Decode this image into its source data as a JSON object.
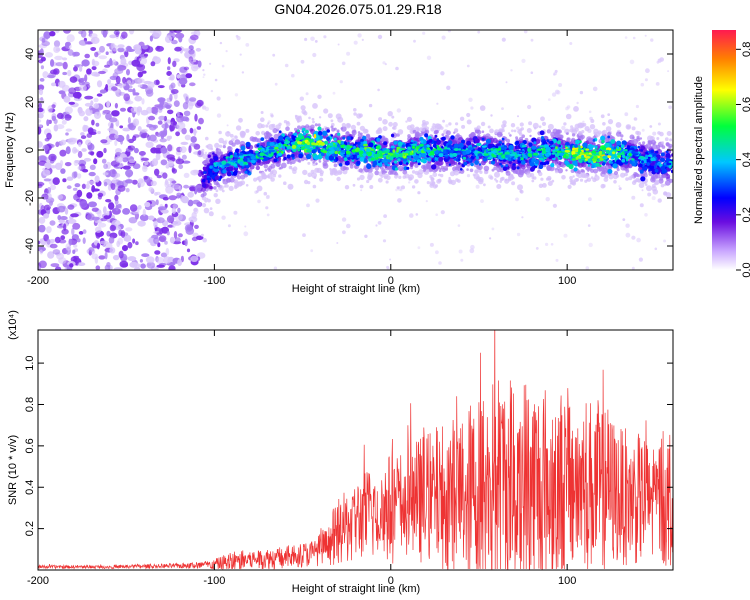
{
  "title": "GN04.2026.075.01.29.R18",
  "chart_data": [
    {
      "type": "heatmap",
      "xlabel": "Height of straight line (km)",
      "ylabel": "Frequency (Hz)",
      "xlim": [
        -200,
        160
      ],
      "ylim": [
        -50,
        50
      ],
      "xticks": [
        -200,
        -100,
        0,
        100
      ],
      "xtick_labels": [
        "-200",
        "-100",
        "0",
        "100"
      ],
      "yticks": [
        -40,
        -20,
        0,
        20,
        40
      ],
      "ytick_labels": [
        "-40",
        "-20",
        "0",
        "20",
        "40"
      ],
      "colorbar": {
        "label": "Normalized spectral amplitude",
        "range": [
          0,
          0.87
        ],
        "ticks": [
          0,
          0.2,
          0.4,
          0.6,
          0.8
        ],
        "tick_labels": [
          "0.0",
          "0.2",
          "0.4",
          "0.6",
          "0.8"
        ]
      },
      "noise_region_x": [
        -200,
        -107
      ],
      "signal_track": {
        "x": [
          -107,
          -100,
          -90,
          -80,
          -70,
          -60,
          -50,
          -45,
          -40,
          -30,
          -20,
          -10,
          0,
          10,
          20,
          30,
          40,
          50,
          60,
          70,
          80,
          90,
          100,
          110,
          120,
          130,
          140,
          150,
          160
        ],
        "freq": [
          -12,
          -8,
          -5,
          -3,
          -1,
          1,
          3,
          3,
          2,
          1,
          0,
          -1,
          -2,
          -1,
          0,
          -1,
          -1,
          0,
          -1,
          -2,
          -2,
          0,
          -1,
          -2,
          -2,
          -1,
          -3,
          -5,
          -6
        ],
        "peak_amplitude": [
          0.3,
          0.45,
          0.5,
          0.5,
          0.55,
          0.6,
          0.7,
          0.75,
          0.7,
          0.6,
          0.6,
          0.65,
          0.6,
          0.65,
          0.6,
          0.5,
          0.5,
          0.5,
          0.55,
          0.5,
          0.55,
          0.55,
          0.7,
          0.7,
          0.75,
          0.6,
          0.5,
          0.45,
          0.45
        ]
      }
    },
    {
      "type": "line",
      "xlabel": "Height of straight line (km)",
      "ylabel": "SNR (10 * v/v)",
      "multiplier": "(x10⁴)",
      "xlim": [
        -200,
        160
      ],
      "ylim": [
        0,
        1.16
      ],
      "xticks": [
        -200,
        -100,
        0,
        100
      ],
      "xtick_labels": [
        "-200",
        "-100",
        "0",
        "100"
      ],
      "yticks": [
        0.2,
        0.4,
        0.6,
        0.8,
        1.0
      ],
      "ytick_labels": [
        "0.2",
        "0.4",
        "0.6",
        "0.8",
        "1.0"
      ],
      "series": [
        {
          "name": "SNR",
          "color": "#ee3333",
          "x": [
            -200,
            -160,
            -120,
            -100,
            -90,
            -80,
            -60,
            -45,
            -35,
            -30,
            -20,
            -10,
            0,
            10,
            20,
            30,
            40,
            50,
            60,
            70,
            80,
            90,
            100,
            110,
            120,
            130,
            140,
            150,
            160
          ],
          "center": [
            0.015,
            0.015,
            0.02,
            0.025,
            0.04,
            0.05,
            0.06,
            0.08,
            0.12,
            0.18,
            0.24,
            0.28,
            0.3,
            0.32,
            0.35,
            0.36,
            0.37,
            0.38,
            0.4,
            0.42,
            0.4,
            0.4,
            0.42,
            0.42,
            0.4,
            0.36,
            0.34,
            0.34,
            0.35
          ],
          "spread": [
            0.01,
            0.01,
            0.015,
            0.03,
            0.07,
            0.06,
            0.07,
            0.08,
            0.12,
            0.2,
            0.25,
            0.3,
            0.34,
            0.36,
            0.4,
            0.45,
            0.5,
            0.6,
            0.7,
            0.72,
            0.68,
            0.62,
            0.58,
            0.55,
            0.52,
            0.42,
            0.4,
            0.4,
            0.45
          ]
        }
      ]
    }
  ]
}
